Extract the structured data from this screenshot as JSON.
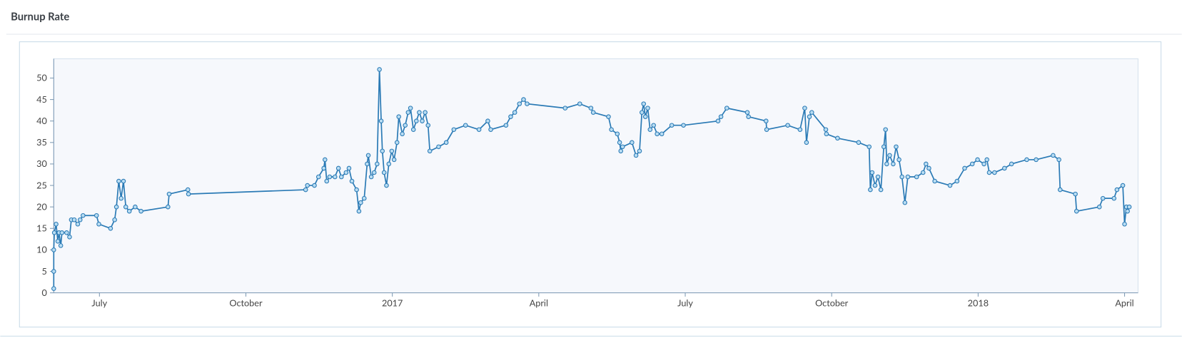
{
  "chart_data": {
    "type": "line",
    "title": "Burnup Rate",
    "color": "#2a7ab5",
    "marker_fill": "#b9ddf3",
    "grid": false,
    "xlim": [
      2016.422,
      2018.273
    ],
    "ylim": [
      0,
      54.5
    ],
    "xticks": [
      {
        "value": 2016.5,
        "label": "July"
      },
      {
        "value": 2016.75,
        "label": "October"
      },
      {
        "value": 2017.0,
        "label": "2017"
      },
      {
        "value": 2017.25,
        "label": "April"
      },
      {
        "value": 2017.5,
        "label": "July"
      },
      {
        "value": 2017.75,
        "label": "October"
      },
      {
        "value": 2018.0,
        "label": "2018"
      },
      {
        "value": 2018.25,
        "label": "April"
      }
    ],
    "yticks": [
      0,
      5,
      10,
      15,
      20,
      25,
      30,
      35,
      40,
      45,
      50
    ],
    "x": [
      2016.422,
      2016.422,
      2016.422,
      2016.423,
      2016.426,
      2016.429,
      2016.431,
      2016.434,
      2016.436,
      2016.444,
      2016.449,
      2016.452,
      2016.457,
      2016.463,
      2016.467,
      2016.472,
      2016.495,
      2016.499,
      2016.519,
      2016.526,
      2016.529,
      2016.533,
      2016.537,
      2016.541,
      2016.545,
      2016.551,
      2016.561,
      2016.571,
      2016.617,
      2016.619,
      2016.651,
      2016.652,
      2016.852,
      2016.855,
      2016.867,
      2016.874,
      2016.883,
      2016.885,
      2016.888,
      2016.893,
      2016.902,
      2016.908,
      2016.913,
      2016.921,
      2016.926,
      2016.931,
      2016.939,
      2016.943,
      2016.946,
      2016.952,
      2016.957,
      2016.959,
      2016.964,
      2016.969,
      2016.974,
      2016.978,
      2016.981,
      2016.983,
      2016.986,
      2016.99,
      2016.994,
      2016.999,
      2017.003,
      2017.008,
      2017.011,
      2017.017,
      2017.022,
      2017.027,
      2017.031,
      2017.036,
      2017.041,
      2017.046,
      2017.051,
      2017.056,
      2017.061,
      2017.064,
      2017.079,
      2017.092,
      2017.105,
      2017.125,
      2017.148,
      2017.163,
      2017.168,
      2017.194,
      2017.202,
      2017.209,
      2017.217,
      2017.224,
      2017.23,
      2017.295,
      2017.32,
      2017.339,
      2017.343,
      2017.369,
      2017.374,
      2017.384,
      2017.388,
      2017.39,
      2017.393,
      2017.409,
      2017.416,
      2017.422,
      2017.426,
      2017.429,
      2017.432,
      2017.436,
      2017.44,
      2017.446,
      2017.452,
      2017.46,
      2017.477,
      2017.497,
      2017.556,
      2017.561,
      2017.571,
      2017.606,
      2017.608,
      2017.638,
      2017.639,
      2017.675,
      2017.696,
      2017.704,
      2017.707,
      2017.712,
      2017.716,
      2017.74,
      2017.741,
      2017.76,
      2017.796,
      2017.814,
      2017.816,
      2017.819,
      2017.824,
      2017.829,
      2017.834,
      2017.839,
      2017.842,
      2017.844,
      2017.849,
      2017.855,
      2017.86,
      2017.865,
      2017.87,
      2017.875,
      2017.88,
      2017.895,
      2017.906,
      2017.911,
      2017.916,
      2017.926,
      2017.952,
      2017.964,
      2017.977,
      2017.99,
      2017.999,
      2018.01,
      2018.015,
      2018.019,
      2018.028,
      2018.045,
      2018.057,
      2018.083,
      2018.099,
      2018.128,
      2018.138,
      2018.14,
      2018.166,
      2018.168,
      2018.207,
      2018.213,
      2018.232,
      2018.237,
      2018.247,
      2018.25,
      2018.253,
      2018.255,
      2018.258
    ],
    "values": [
      1,
      5,
      10,
      14,
      16,
      12,
      14,
      11,
      14,
      14,
      13,
      17,
      17,
      16,
      17,
      18,
      18,
      16,
      15,
      17,
      20,
      26,
      22,
      26,
      20,
      19,
      20,
      19,
      20,
      23,
      24,
      23,
      24,
      25,
      25,
      27,
      29,
      31,
      26,
      27,
      27,
      29,
      27,
      28,
      29,
      26,
      24,
      19,
      21,
      22,
      30,
      32,
      27,
      28,
      30,
      52,
      40,
      33,
      28,
      25,
      30,
      33,
      31,
      35,
      41,
      37,
      39,
      42,
      43,
      38,
      40,
      42,
      40,
      42,
      39,
      33,
      34,
      35,
      38,
      39,
      38,
      40,
      38,
      39,
      41,
      42,
      44,
      45,
      44,
      43,
      44,
      43,
      42,
      41,
      38,
      37,
      35,
      33,
      34,
      35,
      32,
      33,
      42,
      44,
      41,
      43,
      38,
      39,
      37,
      37,
      39,
      39,
      40,
      41,
      43,
      42,
      41,
      40,
      38,
      39,
      38,
      43,
      35,
      41,
      42,
      38,
      37,
      36,
      35,
      34,
      24,
      28,
      25,
      27,
      24,
      34,
      38,
      30,
      32,
      30,
      34,
      31,
      27,
      21,
      27,
      27,
      28,
      30,
      29,
      26,
      25,
      26,
      29,
      30,
      31,
      30,
      31,
      28,
      28,
      29,
      30,
      31,
      31,
      32,
      31,
      24,
      23,
      19,
      20,
      22,
      22,
      24,
      25,
      16,
      20,
      19,
      20
    ]
  }
}
